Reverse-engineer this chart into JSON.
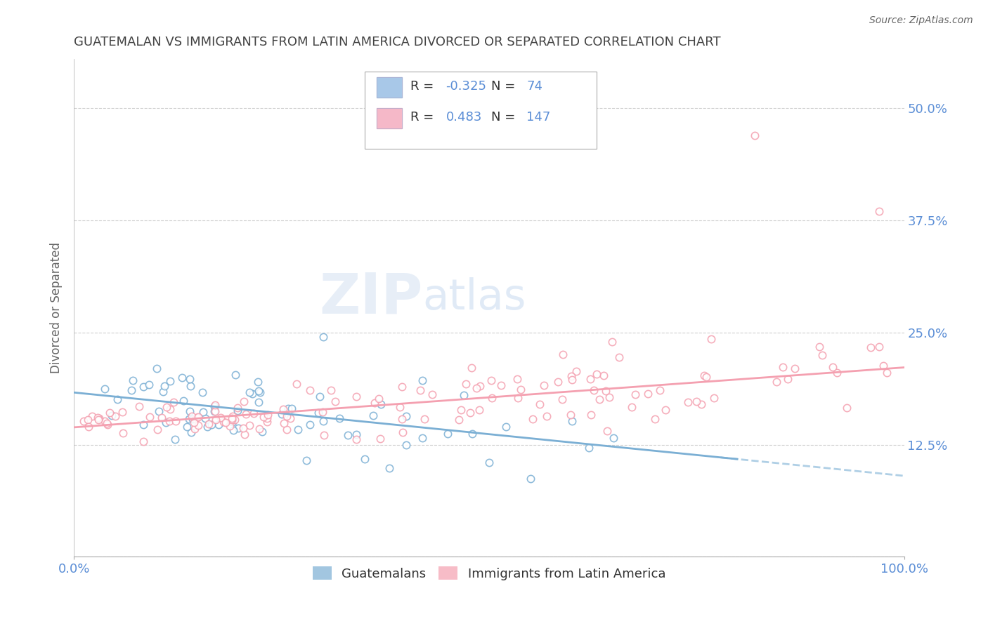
{
  "title": "GUATEMALAN VS IMMIGRANTS FROM LATIN AMERICA DIVORCED OR SEPARATED CORRELATION CHART",
  "source": "Source: ZipAtlas.com",
  "ylabel": "Divorced or Separated",
  "xlim": [
    0.0,
    1.0
  ],
  "ylim": [
    0.0,
    0.555
  ],
  "yticks": [
    0.0,
    0.125,
    0.25,
    0.375,
    0.5
  ],
  "ytick_labels": [
    "",
    "12.5%",
    "25.0%",
    "37.5%",
    "50.0%"
  ],
  "xtick_labels": [
    "0.0%",
    "100.0%"
  ],
  "legend_label1": "Guatemalans",
  "legend_label2": "Immigrants from Latin America",
  "blue_color": "#7bafd4",
  "pink_color": "#f4a0b0",
  "blue_marker_color": "#7bafd4",
  "pink_marker_color": "#f4a0b0",
  "watermark_zip": "ZIP",
  "watermark_atlas": "atlas",
  "background_color": "#ffffff",
  "grid_color": "#d0d0d0",
  "axis_color": "#aaaaaa",
  "title_color": "#444444",
  "label_color": "#5b8ed6",
  "legend_r_color": "#333333",
  "legend_val_color": "#5b8ed6"
}
